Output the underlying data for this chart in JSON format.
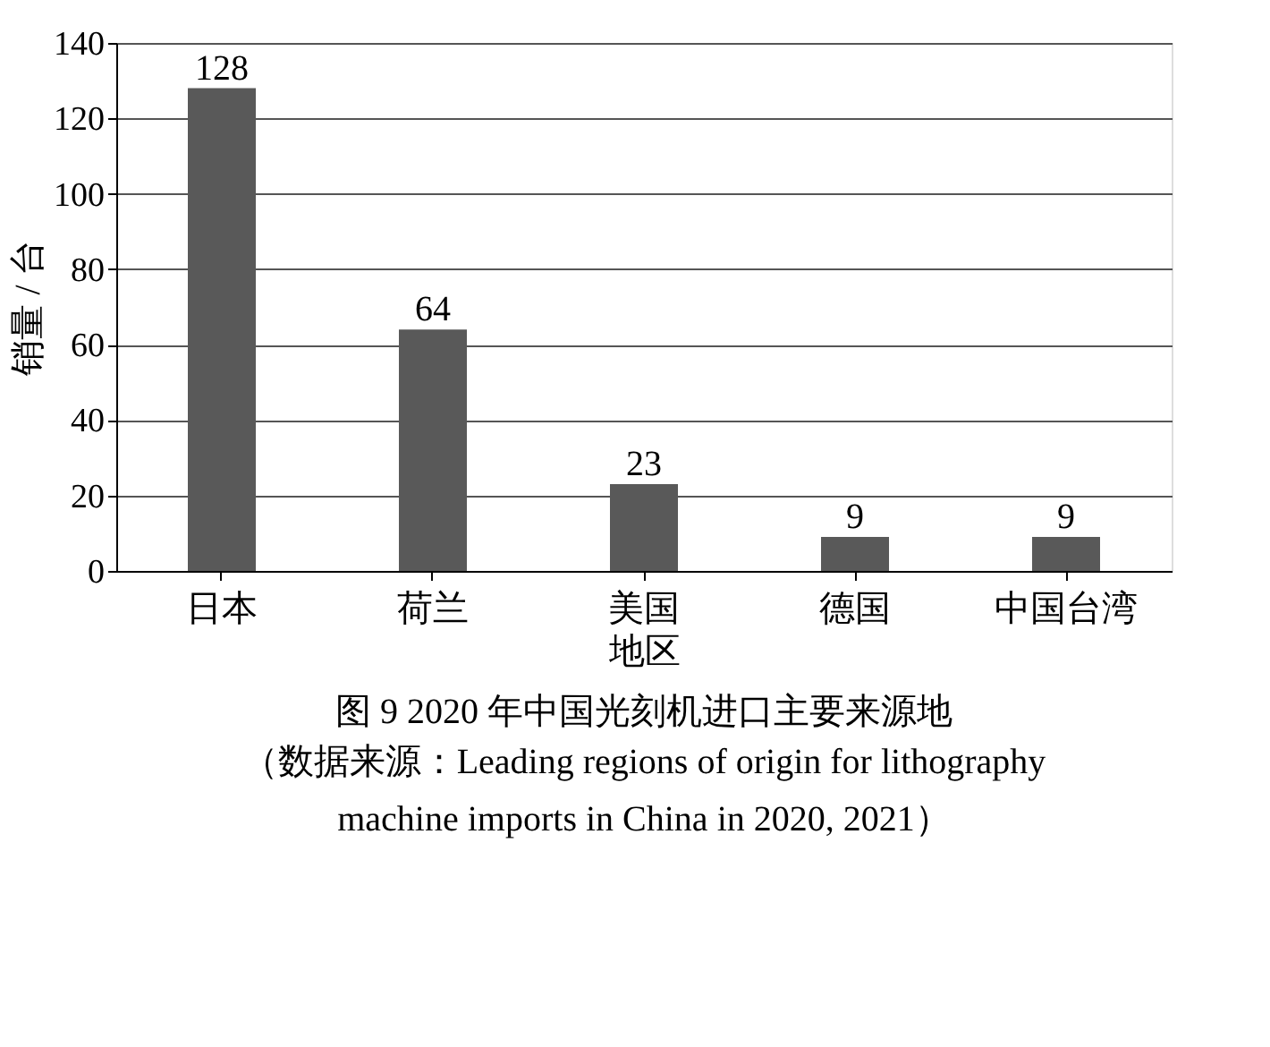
{
  "chart_data": {
    "type": "bar",
    "title": "图 9  2020 年中国光刻机进口主要来源地",
    "categories": [
      "日本",
      "荷兰",
      "美国",
      "德国",
      "中国台湾"
    ],
    "values": [
      128,
      64,
      23,
      9,
      9
    ],
    "color": "#595959",
    "xlabel": "地区",
    "ylabel": "销量 / 台",
    "ylim": [
      0,
      140
    ],
    "yticks": [
      0,
      20,
      40,
      60,
      80,
      100,
      120,
      140
    ],
    "grid": "y",
    "data_labels": true,
    "annotations": [
      "（数据来源：Leading regions of origin for lithography machine imports in China in 2020, 2021）"
    ]
  }
}
